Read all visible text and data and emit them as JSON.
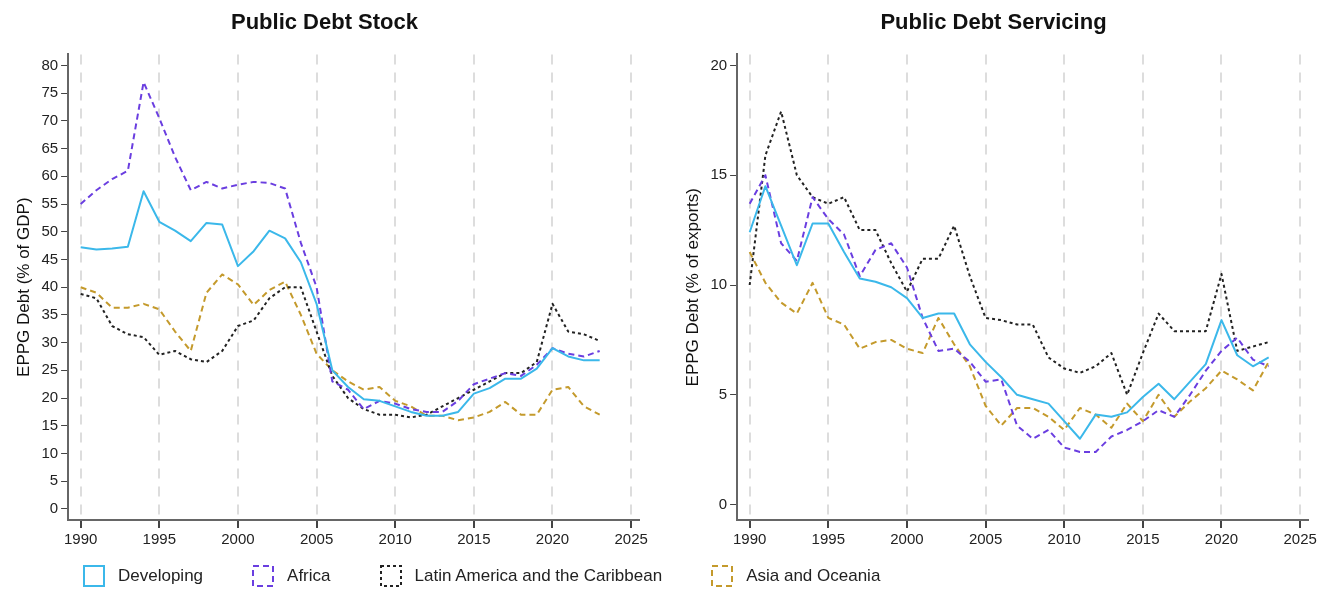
{
  "chart_data": [
    {
      "type": "line",
      "title": "Public Debt Stock",
      "ylabel": "EPPG Debt (% of GDP)",
      "x": [
        1990,
        1991,
        1992,
        1993,
        1994,
        1995,
        1996,
        1997,
        1998,
        1999,
        2000,
        2001,
        2002,
        2003,
        2004,
        2005,
        2006,
        2007,
        2008,
        2009,
        2010,
        2011,
        2012,
        2013,
        2014,
        2015,
        2016,
        2017,
        2018,
        2019,
        2020,
        2021,
        2022,
        2023
      ],
      "xlim": [
        1989.2,
        2025.5
      ],
      "xticks": [
        1990,
        1995,
        2000,
        2005,
        2010,
        2015,
        2020,
        2025
      ],
      "ylim": [
        -2,
        82
      ],
      "yticks": [
        0,
        5,
        10,
        15,
        20,
        25,
        30,
        35,
        40,
        45,
        50,
        55,
        60,
        65,
        70,
        75,
        80
      ],
      "grid": "x",
      "legend": "bottom",
      "marker": "none",
      "series": [
        {
          "name": "Developing",
          "color": "#3bb8ea",
          "line_style": "solid",
          "values": [
            47.2,
            46.8,
            47,
            47.3,
            57.3,
            51.8,
            50.2,
            48.3,
            51.6,
            51.3,
            43.8,
            46.5,
            50.2,
            48.8,
            44.5,
            37,
            25,
            22,
            19.8,
            19.5,
            18.5,
            17.5,
            16.8,
            16.8,
            17.5,
            20.8,
            21.8,
            23.5,
            23.5,
            25.3,
            29,
            27.5,
            26.8,
            26.8
          ]
        },
        {
          "name": "Africa",
          "color": "#6a3ee0",
          "line_style": "dashed",
          "values": [
            55,
            57.5,
            59.5,
            61,
            77,
            70.5,
            63.5,
            57.5,
            59,
            57.8,
            58.5,
            59,
            58.8,
            57.8,
            48,
            40,
            23,
            21.5,
            18,
            19.5,
            19,
            18,
            17.5,
            17.5,
            19.5,
            22.5,
            23.5,
            24.5,
            24,
            26,
            29,
            28,
            27.5,
            28.5
          ]
        },
        {
          "name": "Latin America and the Caribbean",
          "color": "#222222",
          "line_style": "dotted",
          "values": [
            38.8,
            38,
            33,
            31.5,
            31,
            27.8,
            28.5,
            27,
            26.5,
            28.5,
            33,
            34,
            38,
            40,
            40,
            32,
            24,
            20,
            18,
            17,
            17,
            16.5,
            17,
            18.5,
            20,
            21.5,
            23,
            24.5,
            24.5,
            26.5,
            37,
            32,
            31.5,
            30.3
          ]
        },
        {
          "name": "Asia and Oceania",
          "color": "#c49a2c",
          "line_style": "dashed",
          "values": [
            40,
            39,
            36.3,
            36.3,
            37,
            36,
            32,
            28.5,
            39,
            42.3,
            40.5,
            36.8,
            39.5,
            41,
            35,
            28,
            25,
            23,
            21.5,
            22,
            19.5,
            18.5,
            16.8,
            16.8,
            16,
            16.5,
            17.5,
            19.3,
            17,
            17,
            21.5,
            22,
            18.5,
            17
          ]
        }
      ]
    },
    {
      "type": "line",
      "title": "Public Debt Servicing",
      "ylabel": "EPPG Debt (% of exports)",
      "x": [
        1990,
        1991,
        1992,
        1993,
        1994,
        1995,
        1996,
        1997,
        1998,
        1999,
        2000,
        2001,
        2002,
        2003,
        2004,
        2005,
        2006,
        2007,
        2008,
        2009,
        2010,
        2011,
        2012,
        2013,
        2014,
        2015,
        2016,
        2017,
        2018,
        2019,
        2020,
        2021,
        2022,
        2023
      ],
      "xlim": [
        1989.2,
        2025.5
      ],
      "xticks": [
        1990,
        1995,
        2000,
        2005,
        2010,
        2015,
        2020,
        2025
      ],
      "ylim": [
        -0.7,
        20.5
      ],
      "yticks": [
        0,
        5,
        10,
        15,
        20
      ],
      "grid": "x",
      "marker": "none",
      "series": [
        {
          "name": "Developing",
          "color": "#3bb8ea",
          "line_style": "solid",
          "values": [
            12.4,
            14.5,
            12.7,
            10.9,
            12.8,
            12.8,
            11.5,
            10.3,
            10.15,
            9.9,
            9.4,
            8.5,
            8.7,
            8.7,
            7.3,
            6.5,
            5.8,
            5.0,
            4.8,
            4.6,
            3.8,
            3.0,
            4.1,
            4.0,
            4.2,
            4.9,
            5.5,
            4.8,
            5.6,
            6.4,
            8.4,
            6.8,
            6.3,
            6.7
          ]
        },
        {
          "name": "Africa",
          "color": "#6a3ee0",
          "line_style": "dashed",
          "values": [
            13.7,
            15.0,
            11.9,
            11.1,
            14.0,
            13.0,
            12.3,
            10.4,
            11.6,
            11.9,
            10.8,
            8.5,
            7.0,
            7.1,
            6.5,
            5.6,
            5.7,
            3.6,
            3.0,
            3.4,
            2.6,
            2.4,
            2.4,
            3.1,
            3.4,
            3.8,
            4.3,
            4.0,
            5.0,
            6.1,
            7.0,
            7.6,
            6.6,
            6.3
          ]
        },
        {
          "name": "Latin America and the Caribbean",
          "color": "#222222",
          "line_style": "dotted",
          "values": [
            10.0,
            15.9,
            17.9,
            15.0,
            14.0,
            13.7,
            14.0,
            12.5,
            12.5,
            11.0,
            9.7,
            11.2,
            11.2,
            12.7,
            10.4,
            8.5,
            8.4,
            8.2,
            8.2,
            6.7,
            6.2,
            6.0,
            6.3,
            6.9,
            5.0,
            6.9,
            8.7,
            7.9,
            7.9,
            7.9,
            10.5,
            7.0,
            7.2,
            7.4
          ]
        },
        {
          "name": "Asia and Oceania",
          "color": "#c49a2c",
          "line_style": "dashed",
          "values": [
            11.5,
            10.1,
            9.2,
            8.7,
            10.1,
            8.5,
            8.2,
            7.1,
            7.4,
            7.5,
            7.1,
            6.9,
            8.5,
            7.3,
            6.3,
            4.5,
            3.6,
            4.4,
            4.4,
            4.0,
            3.4,
            4.4,
            4.1,
            3.5,
            4.6,
            3.8,
            5.0,
            4.0,
            4.7,
            5.3,
            6.1,
            5.7,
            5.2,
            6.5
          ]
        }
      ]
    }
  ]
}
